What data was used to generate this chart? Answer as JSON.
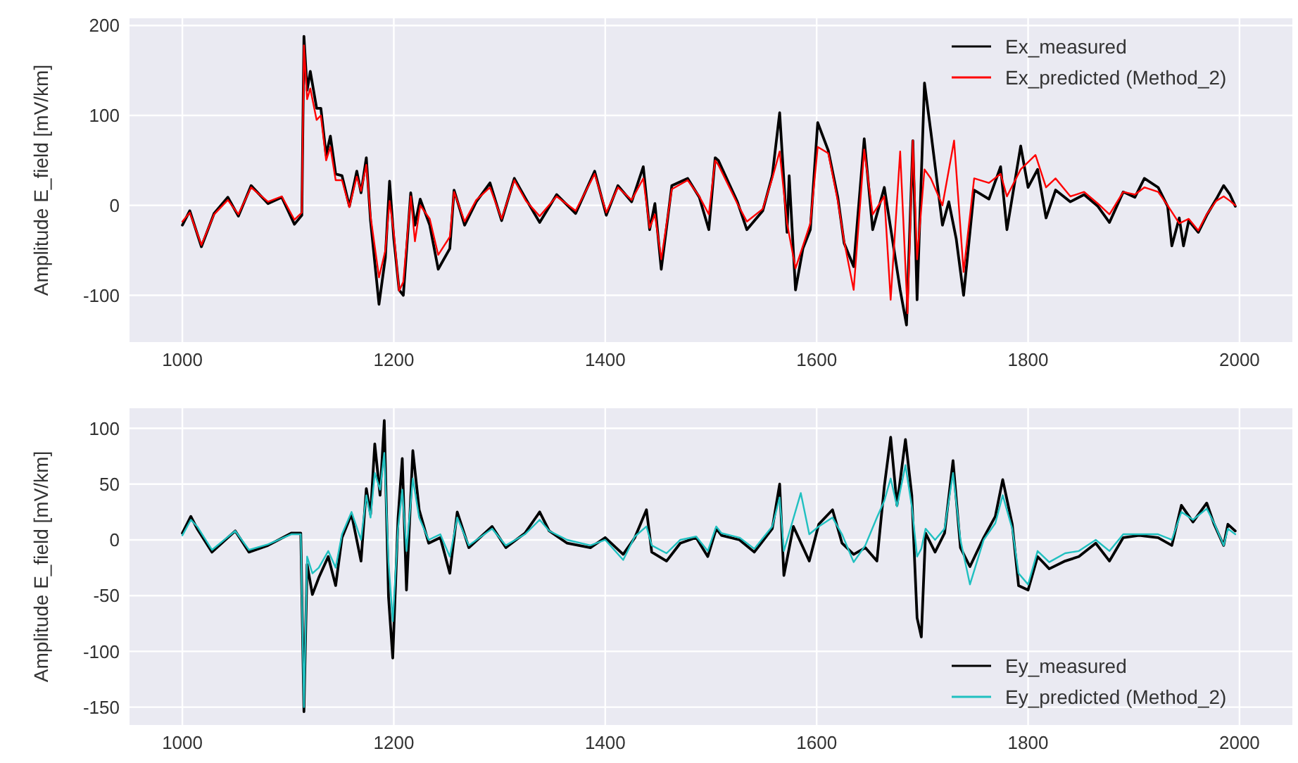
{
  "chart_data": [
    {
      "type": "line",
      "ylabel": "Amplitude E_field [mV/km]",
      "xlim": [
        950,
        2050
      ],
      "xticks": [
        1000,
        1200,
        1400,
        1600,
        1800,
        2000
      ],
      "ylim": [
        -152,
        208
      ],
      "yticks": [
        -100,
        0,
        100,
        200
      ],
      "grid": true,
      "legend": "top right",
      "line_style": "solid",
      "marker": "none",
      "series": [
        {
          "name": "Ex_measured",
          "color": "#000000",
          "x": [
            1000,
            1007,
            1018,
            1030,
            1043,
            1053,
            1065,
            1081,
            1094,
            1106,
            1113,
            1115,
            1118,
            1121,
            1127,
            1131,
            1136,
            1140,
            1145,
            1151,
            1158,
            1165,
            1169,
            1174,
            1178,
            1186,
            1192,
            1196,
            1200,
            1205,
            1209,
            1216,
            1220,
            1225,
            1234,
            1242,
            1253,
            1257,
            1267,
            1278,
            1291,
            1302,
            1314,
            1325,
            1338,
            1354,
            1372,
            1390,
            1401,
            1412,
            1425,
            1436,
            1442,
            1447,
            1453,
            1463,
            1478,
            1489,
            1498,
            1504,
            1507,
            1525,
            1534,
            1549,
            1558,
            1565,
            1572,
            1574,
            1580,
            1587,
            1594,
            1601,
            1611,
            1620,
            1626,
            1635,
            1645,
            1653,
            1664,
            1673,
            1679,
            1685,
            1691,
            1695,
            1702,
            1708,
            1719,
            1725,
            1732,
            1739,
            1749,
            1763,
            1774,
            1780,
            1793,
            1800,
            1809,
            1817,
            1826,
            1840,
            1853,
            1866,
            1877,
            1890,
            1901,
            1910,
            1923,
            1932,
            1936,
            1943,
            1947,
            1952,
            1961,
            1969,
            1978,
            1985,
            1991,
            1996
          ],
          "values": [
            -22,
            -6,
            -46,
            -9,
            9,
            -12,
            22,
            2,
            9,
            -21,
            -11,
            188,
            128,
            149,
            108,
            108,
            56,
            77,
            35,
            33,
            -1,
            38,
            14,
            53,
            -17,
            -110,
            -58,
            27,
            -37,
            -94,
            -100,
            14,
            -22,
            7,
            -22,
            -71,
            -48,
            17,
            -22,
            4,
            25,
            -17,
            30,
            7,
            -19,
            12,
            -9,
            38,
            -11,
            22,
            4,
            43,
            -27,
            2,
            -71,
            22,
            30,
            9,
            -27,
            53,
            50,
            4,
            -27,
            -6,
            33,
            103,
            -30,
            33,
            -94,
            -48,
            -27,
            92,
            61,
            9,
            -42,
            -68,
            74,
            -27,
            20,
            -48,
            -94,
            -133,
            72,
            -105,
            136,
            82,
            -22,
            4,
            -37,
            -100,
            17,
            7,
            43,
            -27,
            66,
            20,
            40,
            -14,
            17,
            4,
            12,
            -1,
            -19,
            15,
            9,
            30,
            20,
            -1,
            -45,
            -14,
            -45,
            -17,
            -30,
            -11,
            7,
            22,
            12,
            -1
          ]
        },
        {
          "name": "Ex_predicted (Method_2)",
          "color": "#ff0000",
          "x": [
            1000,
            1007,
            1018,
            1030,
            1043,
            1053,
            1065,
            1081,
            1094,
            1106,
            1113,
            1115,
            1118,
            1121,
            1127,
            1131,
            1136,
            1140,
            1145,
            1151,
            1158,
            1165,
            1169,
            1174,
            1178,
            1186,
            1192,
            1196,
            1200,
            1205,
            1209,
            1216,
            1220,
            1225,
            1234,
            1242,
            1253,
            1257,
            1267,
            1278,
            1291,
            1302,
            1314,
            1325,
            1338,
            1354,
            1372,
            1390,
            1401,
            1412,
            1425,
            1436,
            1442,
            1447,
            1453,
            1463,
            1478,
            1489,
            1498,
            1504,
            1507,
            1525,
            1534,
            1549,
            1558,
            1565,
            1572,
            1580,
            1587,
            1594,
            1601,
            1611,
            1620,
            1626,
            1635,
            1645,
            1653,
            1664,
            1670,
            1679,
            1686,
            1691,
            1695,
            1702,
            1708,
            1719,
            1730,
            1739,
            1749,
            1763,
            1774,
            1780,
            1793,
            1807,
            1817,
            1826,
            1840,
            1853,
            1866,
            1877,
            1890,
            1901,
            1910,
            1923,
            1932,
            1943,
            1952,
            1961,
            1969,
            1978,
            1985,
            1991,
            1996
          ],
          "values": [
            -18,
            -8,
            -44,
            -10,
            6,
            -10,
            20,
            4,
            10,
            -16,
            -8,
            178,
            118,
            130,
            95,
            100,
            50,
            65,
            28,
            28,
            -2,
            32,
            16,
            45,
            -12,
            -80,
            -50,
            5,
            -30,
            -95,
            -85,
            10,
            -40,
            0,
            -15,
            -55,
            -35,
            15,
            -18,
            6,
            20,
            -15,
            28,
            5,
            -12,
            10,
            -6,
            35,
            -8,
            20,
            6,
            30,
            -25,
            -10,
            -60,
            18,
            28,
            10,
            -10,
            50,
            45,
            2,
            -18,
            -4,
            30,
            60,
            -20,
            -70,
            -45,
            -20,
            65,
            58,
            5,
            -40,
            -94,
            62,
            -10,
            10,
            -105,
            60,
            -120,
            72,
            -60,
            40,
            30,
            0,
            72,
            -74,
            30,
            25,
            35,
            10,
            40,
            56,
            20,
            30,
            10,
            15,
            2,
            -10,
            15,
            12,
            20,
            15,
            0,
            -20,
            -15,
            -28,
            -10,
            5,
            10,
            5,
            0
          ]
        }
      ]
    },
    {
      "type": "line",
      "ylabel": "Amplitude E_field [mV/km]",
      "xlim": [
        950,
        2050
      ],
      "xticks": [
        1000,
        1200,
        1400,
        1600,
        1800,
        2000
      ],
      "ylim": [
        -166,
        118
      ],
      "yticks": [
        -150,
        -100,
        -50,
        0,
        50,
        100
      ],
      "grid": true,
      "legend": "bottom right",
      "line_style": "solid",
      "marker": "none",
      "series": [
        {
          "name": "Ey_measured",
          "color": "#000000",
          "x": [
            1000,
            1008,
            1014,
            1028,
            1050,
            1063,
            1081,
            1103,
            1112,
            1115,
            1118,
            1123,
            1129,
            1138,
            1145,
            1151,
            1160,
            1169,
            1174,
            1178,
            1182,
            1187,
            1191,
            1195,
            1199,
            1204,
            1208,
            1212,
            1218,
            1224,
            1233,
            1244,
            1253,
            1260,
            1271,
            1293,
            1306,
            1324,
            1338,
            1347,
            1364,
            1386,
            1400,
            1417,
            1428,
            1439,
            1444,
            1458,
            1471,
            1486,
            1497,
            1505,
            1510,
            1527,
            1541,
            1558,
            1565,
            1569,
            1578,
            1593,
            1602,
            1615,
            1624,
            1635,
            1646,
            1657,
            1664,
            1670,
            1676,
            1684,
            1690,
            1695,
            1699,
            1703,
            1712,
            1721,
            1729,
            1736,
            1745,
            1758,
            1769,
            1776,
            1785,
            1791,
            1800,
            1809,
            1820,
            1835,
            1848,
            1864,
            1877,
            1890,
            1905,
            1923,
            1936,
            1945,
            1956,
            1969,
            1976,
            1985,
            1989,
            1996
          ],
          "values": [
            6,
            21,
            10,
            -11,
            8,
            -11,
            -5,
            6,
            6,
            -154,
            -22,
            -49,
            -34,
            -15,
            -41,
            2,
            23,
            -19,
            46,
            23,
            86,
            40,
            107,
            -51,
            -106,
            19,
            73,
            -45,
            80,
            27,
            -3,
            2,
            -30,
            25,
            -7,
            12,
            -7,
            6,
            25,
            8,
            -3,
            -7,
            2,
            -13,
            2,
            27,
            -11,
            -19,
            -3,
            2,
            -15,
            10,
            4,
            0,
            -11,
            10,
            50,
            -32,
            12,
            -19,
            14,
            27,
            -3,
            -13,
            -7,
            -19,
            48,
            92,
            31,
            90,
            40,
            -70,
            -87,
            6,
            -11,
            6,
            71,
            -7,
            -24,
            2,
            21,
            54,
            14,
            -41,
            -45,
            -15,
            -26,
            -19,
            -15,
            -3,
            -19,
            2,
            4,
            2,
            -5,
            31,
            16,
            33,
            14,
            -5,
            14,
            8
          ]
        },
        {
          "name": "Ey_predicted (Method_2)",
          "color": "#20c0c0",
          "x": [
            1000,
            1008,
            1014,
            1028,
            1050,
            1063,
            1081,
            1103,
            1112,
            1115,
            1118,
            1123,
            1129,
            1138,
            1145,
            1151,
            1160,
            1169,
            1174,
            1178,
            1182,
            1187,
            1191,
            1195,
            1199,
            1204,
            1208,
            1212,
            1218,
            1224,
            1233,
            1244,
            1253,
            1260,
            1271,
            1293,
            1306,
            1324,
            1338,
            1347,
            1364,
            1386,
            1400,
            1417,
            1428,
            1439,
            1444,
            1458,
            1471,
            1486,
            1497,
            1505,
            1510,
            1527,
            1541,
            1558,
            1565,
            1569,
            1585,
            1593,
            1602,
            1615,
            1624,
            1635,
            1646,
            1657,
            1664,
            1670,
            1676,
            1684,
            1690,
            1695,
            1699,
            1703,
            1712,
            1721,
            1729,
            1736,
            1745,
            1758,
            1769,
            1776,
            1785,
            1791,
            1800,
            1809,
            1820,
            1835,
            1848,
            1864,
            1877,
            1890,
            1905,
            1923,
            1936,
            1945,
            1956,
            1969,
            1976,
            1985,
            1989,
            1996
          ],
          "values": [
            4,
            18,
            12,
            -9,
            8,
            -9,
            -4,
            5,
            5,
            -150,
            -15,
            -30,
            -25,
            -10,
            -25,
            5,
            25,
            0,
            40,
            20,
            60,
            45,
            78,
            -20,
            -73,
            10,
            45,
            -10,
            55,
            20,
            0,
            5,
            -15,
            20,
            -5,
            10,
            -5,
            5,
            18,
            8,
            0,
            -5,
            0,
            -18,
            3,
            12,
            -5,
            -12,
            0,
            3,
            -10,
            12,
            6,
            2,
            -8,
            12,
            38,
            -10,
            42,
            5,
            12,
            20,
            5,
            -20,
            -5,
            20,
            35,
            55,
            30,
            67,
            30,
            -15,
            -8,
            10,
            0,
            10,
            60,
            0,
            -40,
            0,
            15,
            40,
            10,
            -30,
            -40,
            -10,
            -20,
            -12,
            -10,
            0,
            -10,
            5,
            5,
            5,
            0,
            25,
            18,
            28,
            15,
            -5,
            10,
            5
          ]
        }
      ]
    }
  ]
}
